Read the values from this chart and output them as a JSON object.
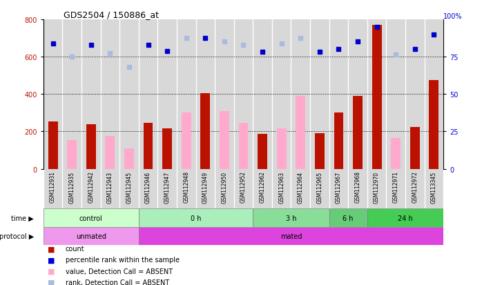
{
  "title": "GDS2504 / 150886_at",
  "samples": [
    "GSM112931",
    "GSM112935",
    "GSM112942",
    "GSM112943",
    "GSM112945",
    "GSM112946",
    "GSM112947",
    "GSM112948",
    "GSM112949",
    "GSM112950",
    "GSM112952",
    "GSM112962",
    "GSM112963",
    "GSM112964",
    "GSM112965",
    "GSM112967",
    "GSM112968",
    "GSM112970",
    "GSM112971",
    "GSM112972",
    "GSM113345"
  ],
  "red_bars": [
    255,
    null,
    240,
    null,
    null,
    245,
    215,
    null,
    405,
    null,
    null,
    185,
    null,
    null,
    190,
    300,
    390,
    770,
    null,
    225,
    475
  ],
  "pink_bars": [
    null,
    155,
    null,
    175,
    110,
    null,
    null,
    300,
    null,
    310,
    245,
    null,
    215,
    390,
    null,
    null,
    null,
    null,
    165,
    null,
    null
  ],
  "blue_dots": [
    670,
    null,
    665,
    null,
    null,
    665,
    630,
    null,
    700,
    null,
    null,
    625,
    null,
    null,
    625,
    640,
    680,
    760,
    null,
    640,
    720
  ],
  "lightblue_dots": [
    null,
    600,
    null,
    620,
    545,
    null,
    null,
    700,
    null,
    680,
    665,
    null,
    670,
    700,
    null,
    null,
    null,
    null,
    610,
    null,
    null
  ],
  "time_groups": [
    {
      "label": "control",
      "start": 0,
      "end": 5,
      "color": "#ccffcc"
    },
    {
      "label": "0 h",
      "start": 5,
      "end": 11,
      "color": "#aaeebb"
    },
    {
      "label": "3 h",
      "start": 11,
      "end": 15,
      "color": "#88dd99"
    },
    {
      "label": "6 h",
      "start": 15,
      "end": 17,
      "color": "#66cc77"
    },
    {
      "label": "24 h",
      "start": 17,
      "end": 21,
      "color": "#44cc55"
    }
  ],
  "protocol_groups": [
    {
      "label": "unmated",
      "start": 0,
      "end": 5,
      "color": "#ee99ee"
    },
    {
      "label": "mated",
      "start": 5,
      "end": 21,
      "color": "#dd44dd"
    }
  ],
  "ylim_left": [
    0,
    800
  ],
  "ylim_right": [
    0,
    100
  ],
  "yticks_left": [
    0,
    200,
    400,
    600,
    800
  ],
  "yticks_right": [
    0,
    25,
    50,
    75
  ],
  "red_color": "#bb1100",
  "pink_color": "#ffaacc",
  "blue_color": "#0000cc",
  "lightblue_color": "#aabbdd",
  "bg_color": "#ffffff",
  "col_bg": "#d8d8d8"
}
